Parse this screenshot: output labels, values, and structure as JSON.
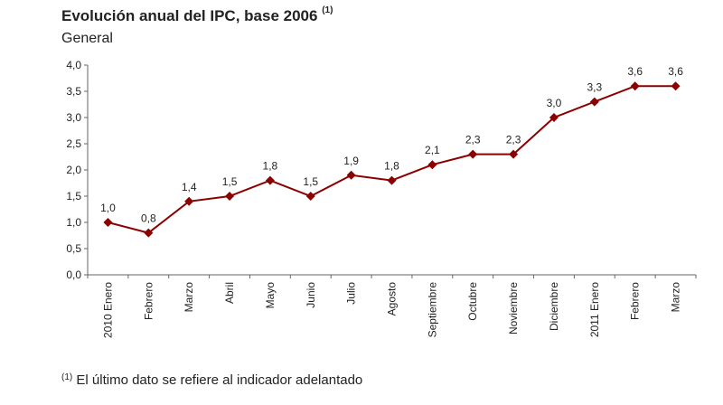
{
  "title": "Evolución anual del IPC, base 2006",
  "title_note": "(1)",
  "subtitle": "General",
  "footnote_mark": "(1)",
  "footnote": "El último dato se refiere al indicador adelantado",
  "chart_data": {
    "type": "line",
    "categories": [
      "2010 Enero",
      "Febrero",
      "Marzo",
      "Abril",
      "Mayo",
      "Junio",
      "Julio",
      "Agosto",
      "Septiembre",
      "Octubre",
      "Noviembre",
      "Diciembre",
      "2011 Enero",
      "Febrero",
      "Marzo"
    ],
    "values": [
      1.0,
      0.8,
      1.4,
      1.5,
      1.8,
      1.5,
      1.9,
      1.8,
      2.1,
      2.3,
      2.3,
      3.0,
      3.3,
      3.6,
      3.6
    ],
    "data_labels": [
      "1,0",
      "0,8",
      "1,4",
      "1,5",
      "1,8",
      "1,5",
      "1,9",
      "1,8",
      "2,1",
      "2,3",
      "2,3",
      "3,0",
      "3,3",
      "3,6",
      "3,6"
    ],
    "ylim": [
      0,
      4
    ],
    "yticks": [
      "0,0",
      "0,5",
      "1,0",
      "1,5",
      "2,0",
      "2,5",
      "3,0",
      "3,5",
      "4,0"
    ],
    "grid": false,
    "marker": "diamond",
    "color": "#8b0000"
  }
}
